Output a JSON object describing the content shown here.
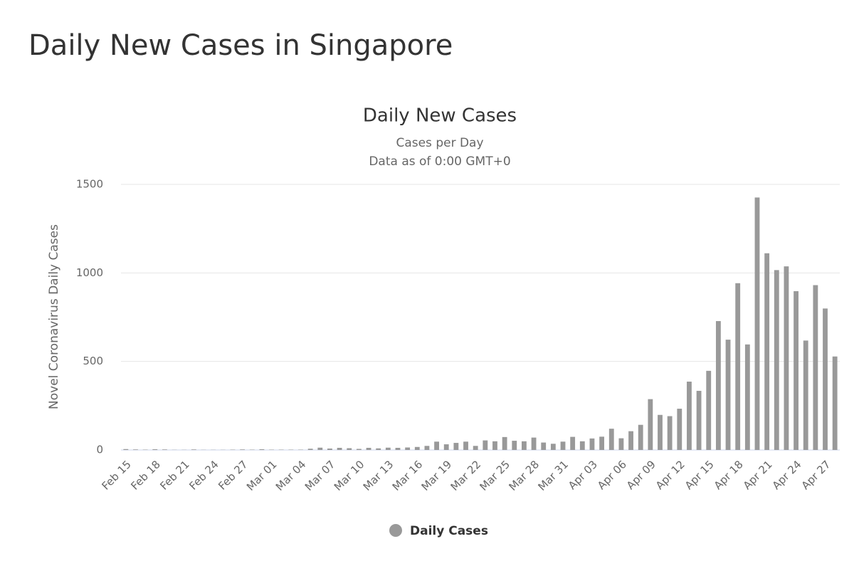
{
  "header": {
    "title": "Daily New Cases in Singapore"
  },
  "chart_data": {
    "type": "bar",
    "title": "Daily New Cases",
    "subtitle": [
      "Cases per Day",
      "Data as of 0:00 GMT+0"
    ],
    "y_label": "Novel Coronavirus Daily Cases",
    "categories": [
      "Feb 15",
      null,
      null,
      "Feb 18",
      null,
      null,
      "Feb 21",
      null,
      null,
      "Feb 24",
      null,
      null,
      "Feb 27",
      null,
      null,
      "Mar 01",
      null,
      null,
      "Mar 04",
      null,
      null,
      "Mar 07",
      null,
      null,
      "Mar 10",
      null,
      null,
      "Mar 13",
      null,
      null,
      "Mar 16",
      null,
      null,
      "Mar 19",
      null,
      null,
      "Mar 22",
      null,
      null,
      "Mar 25",
      null,
      null,
      "Mar 28",
      null,
      null,
      "Mar 31",
      null,
      null,
      "Apr 03",
      null,
      null,
      "Apr 06",
      null,
      null,
      "Apr 09",
      null,
      null,
      "Apr 12",
      null,
      null,
      "Apr 15",
      null,
      null,
      "Apr 18",
      null,
      null,
      "Apr 21",
      null,
      null,
      "Apr 24",
      null,
      null,
      "Apr 27",
      null
    ],
    "series": [
      {
        "name": "Daily Cases",
        "color": "#999999",
        "values": [
          5,
          3,
          2,
          4,
          3,
          1,
          1,
          3,
          1,
          1,
          1,
          2,
          3,
          2,
          4,
          2,
          2,
          2,
          2,
          7,
          13,
          8,
          12,
          10,
          6,
          12,
          9,
          13,
          12,
          14,
          17,
          23,
          47,
          32,
          40,
          47,
          23,
          54,
          49,
          73,
          52,
          49,
          70,
          42,
          35,
          47,
          74,
          49,
          65,
          75,
          120,
          66,
          106,
          142,
          287,
          198,
          191,
          233,
          386,
          334,
          447,
          728,
          623,
          942,
          596,
          1426,
          1111,
          1016,
          1037,
          897,
          618,
          931,
          799,
          528
        ]
      }
    ],
    "ylim": [
      0,
      1500
    ],
    "yticks": [
      0,
      500,
      1000,
      1500
    ],
    "grid": true
  }
}
